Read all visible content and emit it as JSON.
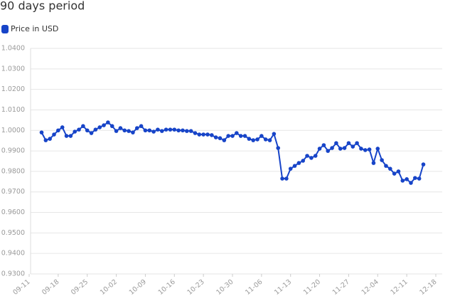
{
  "chart_data": {
    "type": "line",
    "title": "90 days period",
    "x": [
      "09-14",
      "09-15",
      "09-16",
      "09-17",
      "09-18",
      "09-19",
      "09-20",
      "09-21",
      "09-22",
      "09-23",
      "09-24",
      "09-25",
      "09-26",
      "09-27",
      "09-28",
      "09-29",
      "09-30",
      "10-01",
      "10-02",
      "10-03",
      "10-04",
      "10-05",
      "10-06",
      "10-07",
      "10-08",
      "10-09",
      "10-10",
      "10-11",
      "10-12",
      "10-13",
      "10-14",
      "10-15",
      "10-16",
      "10-17",
      "10-18",
      "10-19",
      "10-20",
      "10-21",
      "10-22",
      "10-23",
      "10-24",
      "10-25",
      "10-26",
      "10-27",
      "10-28",
      "10-29",
      "10-30",
      "10-31",
      "11-01",
      "11-02",
      "11-03",
      "11-04",
      "11-05",
      "11-06",
      "11-07",
      "11-08",
      "11-09",
      "11-10",
      "11-11",
      "11-12",
      "11-13",
      "11-14",
      "11-15",
      "11-16",
      "11-17",
      "11-18",
      "11-19",
      "11-20",
      "11-21",
      "11-22",
      "11-23",
      "11-24",
      "11-25",
      "11-26",
      "11-27",
      "11-28",
      "11-29",
      "11-30",
      "12-01",
      "12-02",
      "12-03",
      "12-04",
      "12-05",
      "12-06",
      "12-07",
      "12-08",
      "12-09",
      "12-10",
      "12-11",
      "12-12",
      "12-13",
      "12-14",
      "12-15"
    ],
    "series": [
      {
        "name": "Price in USD",
        "color": "#1744c8",
        "values": [
          0.999,
          0.9952,
          0.9959,
          0.998,
          1.0,
          1.0015,
          0.9973,
          0.9973,
          0.9994,
          1.0004,
          1.0021,
          1.0,
          0.9987,
          1.0004,
          1.0015,
          1.0025,
          1.0039,
          1.0021,
          0.9997,
          1.0011,
          1.0,
          0.9997,
          0.999,
          1.0011,
          1.0021,
          1.0,
          1.0,
          0.9994,
          1.0004,
          0.9997,
          1.0004,
          1.0004,
          1.0004,
          1.0,
          1.0,
          0.9997,
          0.9997,
          0.9987,
          0.998,
          0.998,
          0.998,
          0.9977,
          0.9966,
          0.9962,
          0.9952,
          0.9973,
          0.9973,
          0.9987,
          0.9973,
          0.9973,
          0.9959,
          0.9952,
          0.9956,
          0.9973,
          0.9956,
          0.9952,
          0.9983,
          0.9914,
          0.9765,
          0.9765,
          0.9813,
          0.9827,
          0.9841,
          0.9852,
          0.9876,
          0.9866,
          0.9876,
          0.9911,
          0.9928,
          0.99,
          0.9914,
          0.9938,
          0.9911,
          0.9914,
          0.9938,
          0.9921,
          0.9938,
          0.9911,
          0.9904,
          0.9907,
          0.9841,
          0.9911,
          0.9855,
          0.9827,
          0.9813,
          0.9789,
          0.98,
          0.9755,
          0.9762,
          0.9744,
          0.9768,
          0.9765,
          0.9834
        ]
      }
    ],
    "xlim": [
      "09-11",
      "12-18"
    ],
    "xticks": [
      "09-11",
      "09-18",
      "09-25",
      "10-02",
      "10-09",
      "10-16",
      "10-23",
      "10-30",
      "11-06",
      "11-13",
      "11-20",
      "11-27",
      "12-04",
      "12-11",
      "12-18"
    ],
    "ylim": [
      0.93,
      1.04
    ],
    "yticks": [
      {
        "value": 0.93,
        "label": "0.9300"
      },
      {
        "value": 0.94,
        "label": "0.9400"
      },
      {
        "value": 0.95,
        "label": "0.9500"
      },
      {
        "value": 0.96,
        "label": "0.9600"
      },
      {
        "value": 0.97,
        "label": "0.9700"
      },
      {
        "value": 0.98,
        "label": "0.9800"
      },
      {
        "value": 0.99,
        "label": "0.9900"
      },
      {
        "value": 1.0,
        "label": "1.0000"
      },
      {
        "value": 1.01,
        "label": "1.0100"
      },
      {
        "value": 1.02,
        "label": "1.0200"
      },
      {
        "value": 1.03,
        "label": "1.0300"
      },
      {
        "value": 1.04,
        "label": "1.0400"
      }
    ],
    "grid": true,
    "legend": "top-left"
  }
}
